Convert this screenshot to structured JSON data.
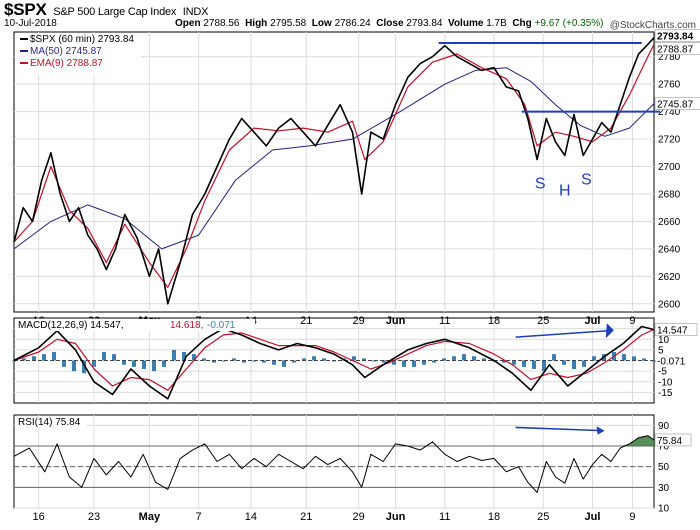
{
  "header": {
    "ticker": "$SPX",
    "name": "S&P 500 Large Cap Index",
    "exchange": "INDX",
    "date": "10-Jul-2018",
    "open_label": "Open",
    "open": "2788.56",
    "high_label": "High",
    "high": "2795.58",
    "low_label": "Low",
    "low": "2786.24",
    "close_label": "Close",
    "close": "2793.84",
    "volume_label": "Volume",
    "volume": "1.7B",
    "chg_label": "Chg",
    "chg": "+9.67 (+0.35%)",
    "watermark": "@StockCharts.com"
  },
  "legend": {
    "price": "$SPX (60 min) 2793.84",
    "ma": "MA(50) 2745.87",
    "ema": "EMA(9) 2788.87",
    "macd_name": "MACD(12,26,9)",
    "macd_val": "14.547",
    "macd_signal": "14.618",
    "macd_hist": "-0.071",
    "rsi": "RSI(14) 75.84"
  },
  "annotations": [
    "S",
    "H",
    "S"
  ],
  "colors": {
    "price": "#000000",
    "ma": "#22227a",
    "ema": "#c0102a",
    "macd_hist": "#3b7fb1",
    "rsi_fill": "#3b7a3b",
    "annotation": "#1f3fb6",
    "label_price": "#000000",
    "label_ma": "#2a2a7a",
    "label_ema": "#c0102a"
  },
  "chart_data": [
    {
      "type": "line",
      "title": "$SPX (60 min)",
      "x": [
        "16",
        "23",
        "May",
        "7",
        "14",
        "21",
        "29",
        "Jun",
        "11",
        "18",
        "25",
        "Jul",
        "9"
      ],
      "ylim": [
        2594,
        2798
      ],
      "yticks": [
        2600,
        2620,
        2640,
        2660,
        2680,
        2700,
        2720,
        2740,
        2760,
        2780
      ],
      "grid": true,
      "series": [
        {
          "name": "$SPX (60 min)",
          "last": 2793.84,
          "points": [
            [
              0,
              2645
            ],
            [
              3,
              2670
            ],
            [
              6,
              2660
            ],
            [
              9,
              2690
            ],
            [
              12,
              2710
            ],
            [
              15,
              2680
            ],
            [
              18,
              2660
            ],
            [
              21,
              2670
            ],
            [
              24,
              2650
            ],
            [
              27,
              2640
            ],
            [
              30,
              2625
            ],
            [
              33,
              2640
            ],
            [
              36,
              2665
            ],
            [
              40,
              2648
            ],
            [
              44,
              2620
            ],
            [
              47,
              2640
            ],
            [
              50,
              2600
            ],
            [
              54,
              2630
            ],
            [
              58,
              2665
            ],
            [
              62,
              2680
            ],
            [
              66,
              2700
            ],
            [
              70,
              2720
            ],
            [
              74,
              2735
            ],
            [
              78,
              2725
            ],
            [
              82,
              2715
            ],
            [
              86,
              2728
            ],
            [
              90,
              2735
            ],
            [
              94,
              2725
            ],
            [
              98,
              2715
            ],
            [
              102,
              2730
            ],
            [
              106,
              2745
            ],
            [
              110,
              2725
            ],
            [
              113,
              2680
            ],
            [
              116,
              2725
            ],
            [
              120,
              2720
            ],
            [
              124,
              2745
            ],
            [
              128,
              2765
            ],
            [
              132,
              2775
            ],
            [
              136,
              2780
            ],
            [
              140,
              2788
            ],
            [
              144,
              2780
            ],
            [
              148,
              2775
            ],
            [
              152,
              2770
            ],
            [
              156,
              2772
            ],
            [
              160,
              2758
            ],
            [
              164,
              2755
            ],
            [
              167,
              2735
            ],
            [
              170,
              2705
            ],
            [
              173,
              2735
            ],
            [
              176,
              2718
            ],
            [
              179,
              2708
            ],
            [
              182,
              2738
            ],
            [
              185,
              2708
            ],
            [
              188,
              2720
            ],
            [
              191,
              2732
            ],
            [
              194,
              2725
            ],
            [
              197,
              2745
            ],
            [
              200,
              2765
            ],
            [
              203,
              2782
            ],
            [
              206,
              2789
            ],
            [
              208,
              2793.84
            ]
          ]
        },
        {
          "name": "MA(50)",
          "last": 2745.87,
          "points": [
            [
              0,
              2640
            ],
            [
              12,
              2660
            ],
            [
              24,
              2672
            ],
            [
              36,
              2662
            ],
            [
              48,
              2640
            ],
            [
              60,
              2650
            ],
            [
              72,
              2690
            ],
            [
              84,
              2712
            ],
            [
              96,
              2715
            ],
            [
              110,
              2720
            ],
            [
              124,
              2738
            ],
            [
              140,
              2760
            ],
            [
              150,
              2770
            ],
            [
              160,
              2772
            ],
            [
              168,
              2762
            ],
            [
              176,
              2745
            ],
            [
              184,
              2730
            ],
            [
              192,
              2722
            ],
            [
              200,
              2728
            ],
            [
              208,
              2745.87
            ]
          ]
        },
        {
          "name": "EMA(9)",
          "last": 2788.87,
          "points": [
            [
              0,
              2645
            ],
            [
              6,
              2660
            ],
            [
              12,
              2700
            ],
            [
              18,
              2668
            ],
            [
              24,
              2655
            ],
            [
              30,
              2630
            ],
            [
              36,
              2658
            ],
            [
              44,
              2630
            ],
            [
              50,
              2612
            ],
            [
              56,
              2640
            ],
            [
              62,
              2675
            ],
            [
              70,
              2712
            ],
            [
              78,
              2728
            ],
            [
              86,
              2726
            ],
            [
              94,
              2728
            ],
            [
              102,
              2725
            ],
            [
              110,
              2733
            ],
            [
              114,
              2705
            ],
            [
              120,
              2718
            ],
            [
              128,
              2758
            ],
            [
              136,
              2776
            ],
            [
              144,
              2782
            ],
            [
              152,
              2772
            ],
            [
              160,
              2764
            ],
            [
              166,
              2745
            ],
            [
              170,
              2715
            ],
            [
              176,
              2725
            ],
            [
              182,
              2722
            ],
            [
              188,
              2718
            ],
            [
              194,
              2728
            ],
            [
              200,
              2752
            ],
            [
              206,
              2780
            ],
            [
              208,
              2788.87
            ]
          ]
        }
      ],
      "annotations": [
        {
          "type": "hline",
          "from": 138,
          "to": 204,
          "y": 2790
        },
        {
          "type": "hline",
          "from": 165,
          "to": 210,
          "y": 2740
        }
      ]
    },
    {
      "type": "line",
      "title": "MACD(12,26,9)",
      "ylim": [
        -20,
        20
      ],
      "yticks": [
        15,
        10,
        5,
        -5,
        -10,
        -15
      ],
      "grid": true,
      "series": [
        {
          "name": "MACD",
          "last": 14.547,
          "points": [
            [
              0,
              0
            ],
            [
              8,
              6
            ],
            [
              14,
              14
            ],
            [
              20,
              5
            ],
            [
              26,
              -10
            ],
            [
              32,
              -16
            ],
            [
              38,
              -4
            ],
            [
              44,
              -12
            ],
            [
              50,
              -18
            ],
            [
              56,
              2
            ],
            [
              62,
              10
            ],
            [
              68,
              15
            ],
            [
              74,
              12
            ],
            [
              80,
              8
            ],
            [
              86,
              5
            ],
            [
              92,
              8
            ],
            [
              98,
              6
            ],
            [
              104,
              3
            ],
            [
              110,
              -2
            ],
            [
              114,
              -8
            ],
            [
              120,
              -2
            ],
            [
              128,
              5
            ],
            [
              134,
              8
            ],
            [
              140,
              10
            ],
            [
              148,
              6
            ],
            [
              156,
              0
            ],
            [
              162,
              -6
            ],
            [
              168,
              -14
            ],
            [
              174,
              -2
            ],
            [
              180,
              -12
            ],
            [
              186,
              -5
            ],
            [
              192,
              2
            ],
            [
              198,
              8
            ],
            [
              204,
              16
            ],
            [
              208,
              14.547
            ]
          ]
        },
        {
          "name": "Signal",
          "last": 14.618,
          "points": [
            [
              0,
              0
            ],
            [
              8,
              4
            ],
            [
              14,
              10
            ],
            [
              20,
              8
            ],
            [
              26,
              -4
            ],
            [
              32,
              -12
            ],
            [
              38,
              -8
            ],
            [
              44,
              -9
            ],
            [
              50,
              -14
            ],
            [
              56,
              -4
            ],
            [
              62,
              6
            ],
            [
              68,
              12
            ],
            [
              74,
              13
            ],
            [
              80,
              10
            ],
            [
              86,
              7
            ],
            [
              92,
              7
            ],
            [
              98,
              7
            ],
            [
              104,
              4
            ],
            [
              110,
              0
            ],
            [
              116,
              -4
            ],
            [
              122,
              -1
            ],
            [
              128,
              3
            ],
            [
              134,
              7
            ],
            [
              140,
              9
            ],
            [
              148,
              8
            ],
            [
              156,
              3
            ],
            [
              162,
              -2
            ],
            [
              168,
              -9
            ],
            [
              174,
              -6
            ],
            [
              180,
              -8
            ],
            [
              186,
              -6
            ],
            [
              192,
              -1
            ],
            [
              198,
              5
            ],
            [
              204,
              12
            ],
            [
              208,
              14.618
            ]
          ]
        },
        {
          "name": "Histogram",
          "last": -0.071,
          "values": [
            0,
            1,
            2,
            3,
            4,
            -3,
            -5,
            -6,
            -3,
            4,
            3,
            -2,
            -3,
            -4,
            -5,
            -3,
            5,
            4,
            3,
            1,
            -1,
            0,
            1,
            -1,
            0,
            -1,
            -2,
            -3,
            -1,
            1,
            2,
            1,
            0,
            1,
            2,
            1,
            0,
            -1,
            -2,
            -3,
            -3,
            -2,
            -1,
            1,
            2,
            3,
            2,
            1,
            0,
            -1,
            -2,
            -3,
            -4,
            -5,
            3,
            -2,
            -4,
            -3,
            2,
            3,
            4,
            3,
            2,
            1,
            0
          ]
        }
      ]
    },
    {
      "type": "line",
      "title": "RSI(14)",
      "ylim": [
        10,
        100
      ],
      "yticks": [
        90,
        70,
        50,
        30,
        10
      ],
      "reference_lines": [
        70,
        50,
        30
      ],
      "series": [
        {
          "name": "RSI(14)",
          "last": 75.84,
          "points": [
            [
              0,
              60
            ],
            [
              5,
              68
            ],
            [
              10,
              45
            ],
            [
              14,
              72
            ],
            [
              18,
              40
            ],
            [
              22,
              30
            ],
            [
              26,
              58
            ],
            [
              30,
              42
            ],
            [
              34,
              55
            ],
            [
              38,
              40
            ],
            [
              42,
              62
            ],
            [
              46,
              35
            ],
            [
              50,
              28
            ],
            [
              54,
              58
            ],
            [
              58,
              66
            ],
            [
              62,
              72
            ],
            [
              66,
              55
            ],
            [
              70,
              62
            ],
            [
              74,
              48
            ],
            [
              78,
              58
            ],
            [
              82,
              50
            ],
            [
              86,
              62
            ],
            [
              90,
              55
            ],
            [
              94,
              48
            ],
            [
              98,
              60
            ],
            [
              102,
              52
            ],
            [
              106,
              58
            ],
            [
              110,
              45
            ],
            [
              113,
              30
            ],
            [
              116,
              62
            ],
            [
              120,
              55
            ],
            [
              124,
              72
            ],
            [
              128,
              70
            ],
            [
              132,
              66
            ],
            [
              136,
              74
            ],
            [
              140,
              62
            ],
            [
              144,
              55
            ],
            [
              148,
              60
            ],
            [
              152,
              56
            ],
            [
              156,
              58
            ],
            [
              160,
              45
            ],
            [
              164,
              50
            ],
            [
              167,
              35
            ],
            [
              170,
              25
            ],
            [
              173,
              55
            ],
            [
              176,
              40
            ],
            [
              179,
              34
            ],
            [
              182,
              58
            ],
            [
              185,
              38
            ],
            [
              188,
              52
            ],
            [
              191,
              62
            ],
            [
              194,
              55
            ],
            [
              197,
              68
            ],
            [
              200,
              72
            ],
            [
              203,
              78
            ],
            [
              206,
              80
            ],
            [
              208,
              75.84
            ]
          ]
        }
      ]
    }
  ]
}
